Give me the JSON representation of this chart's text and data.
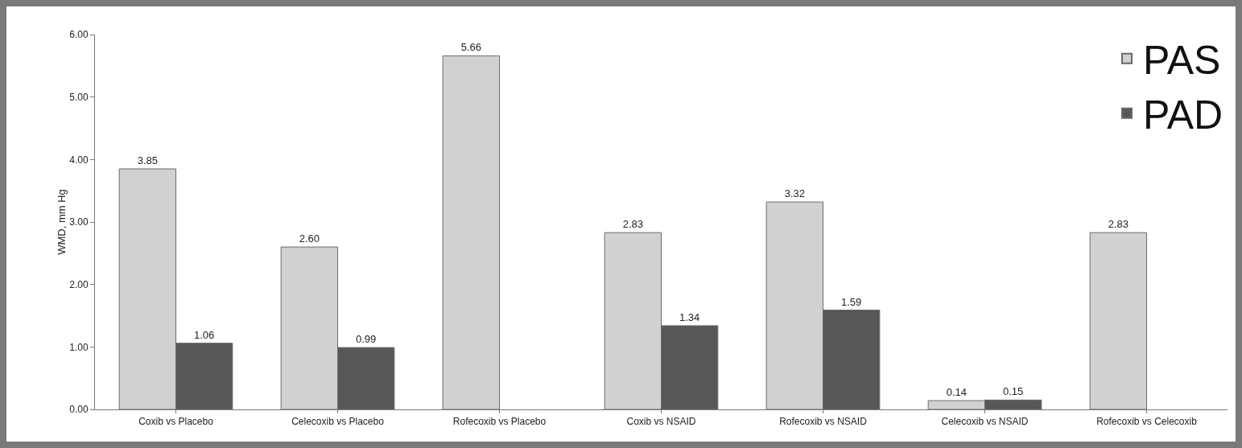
{
  "chart_data": {
    "type": "bar",
    "ylabel": "WMD, mm Hg",
    "categories": [
      "Coxib vs Placebo",
      "Celecoxib vs Placebo",
      "Rofecoxib vs Placebo",
      "Coxib vs NSAID",
      "Rofecoxib vs NSAID",
      "Celecoxib vs NSAID",
      "Rofecoxib vs Celecoxib"
    ],
    "series": [
      {
        "name": "PAS",
        "color": "#d0d1d3",
        "values": [
          3.85,
          2.6,
          5.66,
          2.83,
          3.32,
          0.14,
          2.83
        ],
        "value_labels": [
          "3.85",
          "2.60",
          "5.66",
          "2.83",
          "3.32",
          "0.14",
          "2.83"
        ]
      },
      {
        "name": "PAD",
        "color": "#555759",
        "values": [
          1.06,
          0.99,
          null,
          1.34,
          1.59,
          0.15,
          null
        ],
        "value_labels": [
          "1.06",
          "0.99",
          null,
          "1.34",
          "1.59",
          "0.15",
          null
        ]
      }
    ],
    "ylim": [
      0,
      6
    ],
    "yticks": [
      {
        "value": 0,
        "label": "0.00"
      },
      {
        "value": 1,
        "label": "1.00"
      },
      {
        "value": 2,
        "label": "2.00"
      },
      {
        "value": 3,
        "label": "3.00"
      },
      {
        "value": 4,
        "label": "4.00"
      },
      {
        "value": 5,
        "label": "5.00"
      },
      {
        "value": 6,
        "label": "6.00"
      }
    ],
    "grid": false,
    "legend": "top right"
  }
}
